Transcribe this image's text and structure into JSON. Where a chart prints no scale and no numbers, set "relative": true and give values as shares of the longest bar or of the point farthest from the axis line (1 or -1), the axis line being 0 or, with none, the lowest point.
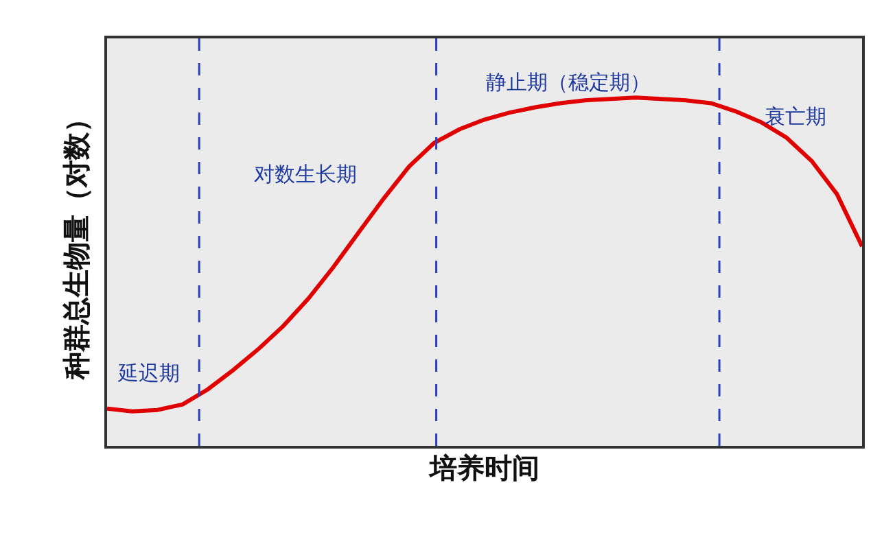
{
  "chart_data": {
    "type": "line",
    "relative": true,
    "xlabel": "培养时间",
    "ylabel": "种群总生物量（对数）",
    "categories": [
      null,
      null,
      null,
      null,
      null,
      null,
      null,
      null,
      null,
      null,
      null,
      null,
      null,
      null,
      null,
      null,
      null,
      null,
      null,
      null,
      null,
      null,
      null,
      null,
      null,
      null,
      null,
      null,
      null,
      null,
      null
    ],
    "tick_labels": false,
    "grid": false,
    "marker": "none",
    "line_style": "solid",
    "series": [
      {
        "color": "#e00000",
        "values": [
          0.107,
          0.099,
          0.103,
          0.119,
          0.162,
          0.217,
          0.277,
          0.344,
          0.423,
          0.514,
          0.613,
          0.711,
          0.802,
          0.87,
          0.909,
          0.937,
          0.957,
          0.972,
          0.984,
          0.992,
          0.996,
          1,
          0.996,
          0.992,
          0.984,
          0.96,
          0.929,
          0.885,
          0.818,
          0.723,
          0.573
        ]
      }
    ],
    "annotations": [
      "延迟期",
      "对数生长期",
      "静止期（稳定期）",
      "衰亡期"
    ]
  }
}
